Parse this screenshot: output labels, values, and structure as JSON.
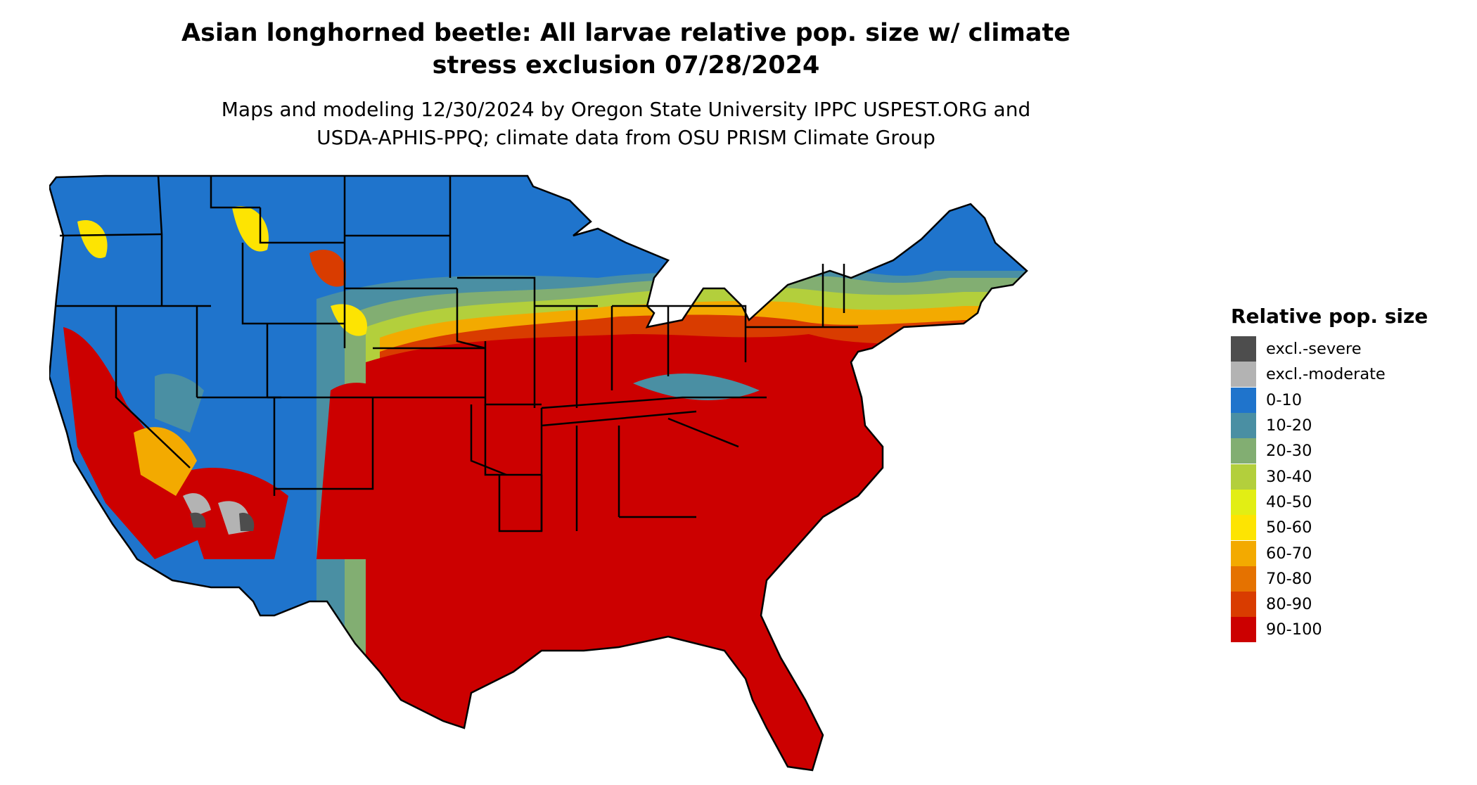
{
  "map": {
    "title_line1": "Asian longhorned beetle: All larvae relative pop. size w/ climate",
    "title_line2": "stress exclusion 07/28/2024",
    "subtitle_line1": "Maps and modeling 12/30/2024 by Oregon State University IPPC USPEST.ORG and",
    "subtitle_line2": "USDA-APHIS-PPQ; climate data from OSU PRISM Climate Group"
  },
  "legend": {
    "title": "Relative pop. size",
    "items": [
      {
        "label": "excl.-severe",
        "color": "#4d4d4d"
      },
      {
        "label": "excl.-moderate",
        "color": "#b3b3b3"
      },
      {
        "label": "0-10",
        "color": "#1f74cc"
      },
      {
        "label": "10-20",
        "color": "#4a8fa3"
      },
      {
        "label": "20-30",
        "color": "#82ae72"
      },
      {
        "label": "30-40",
        "color": "#b3cf3c"
      },
      {
        "label": "40-50",
        "color": "#e2ee14"
      },
      {
        "label": "50-60",
        "color": "#fde402"
      },
      {
        "label": "60-70",
        "color": "#f3aa00"
      },
      {
        "label": "70-80",
        "color": "#e57200"
      },
      {
        "label": "80-90",
        "color": "#d93c00"
      },
      {
        "label": "90-100",
        "color": "#cc0000"
      }
    ]
  }
}
